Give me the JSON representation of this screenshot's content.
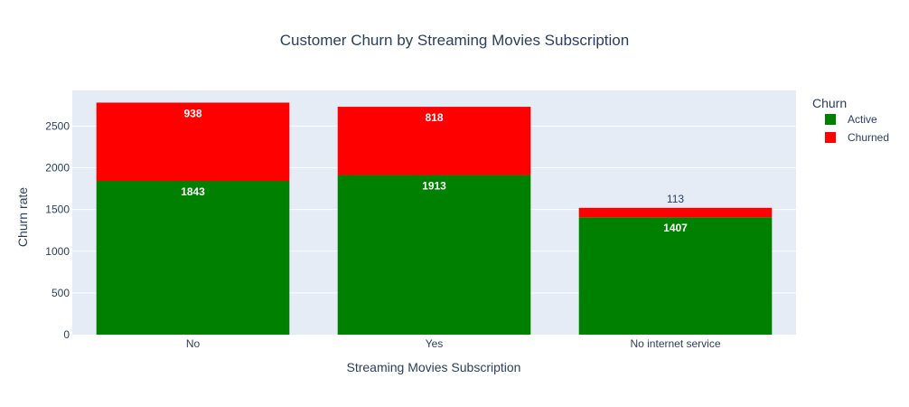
{
  "chart_data": {
    "type": "bar",
    "stacked": true,
    "title": "Customer Churn by Streaming Movies Subscription",
    "xlabel": "Streaming Movies Subscription",
    "ylabel": "Churn rate",
    "categories": [
      "No",
      "Yes",
      "No internet service"
    ],
    "series": [
      {
        "name": "Active",
        "color": "#008000",
        "values": [
          1843,
          1913,
          1407
        ]
      },
      {
        "name": "Churned",
        "color": "#ff0000",
        "values": [
          938,
          818,
          113
        ]
      }
    ],
    "ylim": [
      0,
      2927
    ],
    "yticks": [
      0,
      500,
      1000,
      1500,
      2000,
      2500
    ],
    "legend": {
      "title": "Churn",
      "placement": "top-right"
    },
    "grid": true,
    "plot_background": "#e5ecf6"
  }
}
